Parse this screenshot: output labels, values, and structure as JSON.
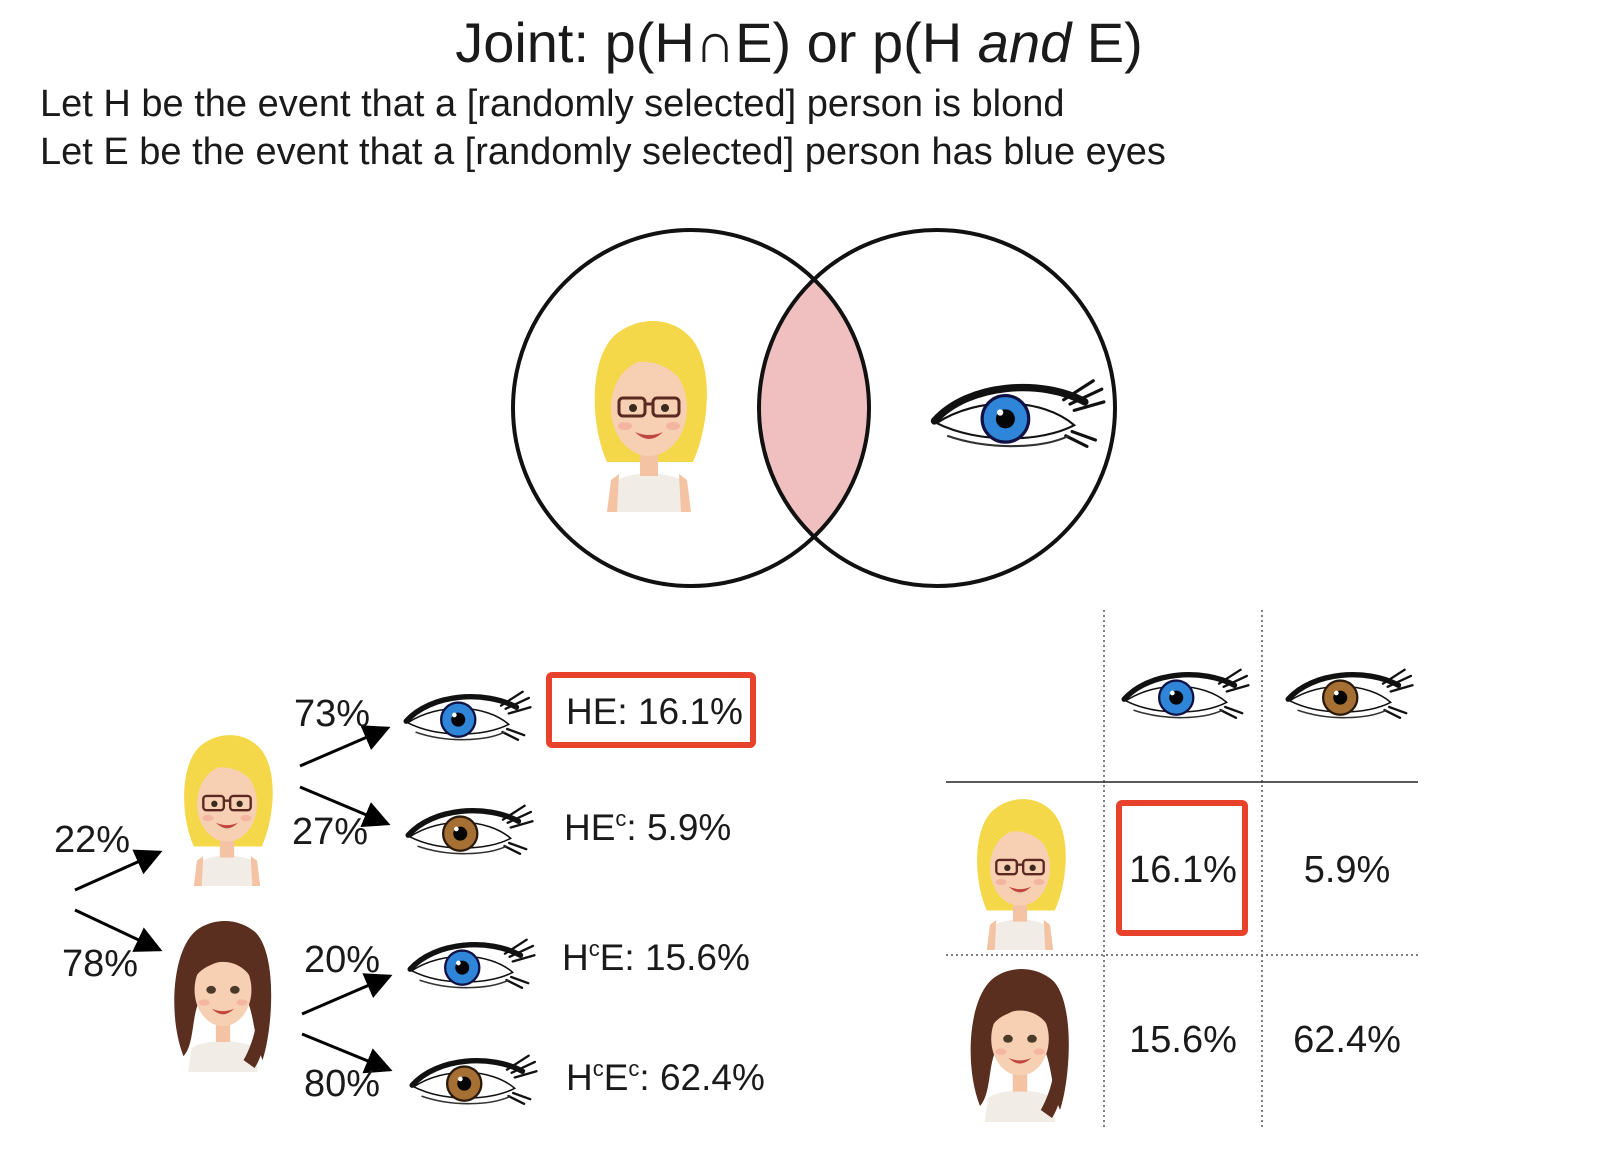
{
  "title": {
    "prefix": "Joint: p(H∩E) or p(H ",
    "italic": "and",
    "suffix": " E)"
  },
  "definitions": {
    "h": "Let H be the event that a [randomly selected] person is blond",
    "e": "Let E be the event that a [randomly selected] person has blue eyes"
  },
  "venn": {
    "left_icon": "blond-woman-avatar",
    "right_icon": "blue-eye-icon",
    "intersection_color": "#f0c0c0"
  },
  "tree": {
    "branch_blond": "22%",
    "branch_brunette": "78%",
    "blond_blue": "73%",
    "blond_brown": "27%",
    "brunette_blue": "20%",
    "brunette_brown": "80%",
    "outcomes": {
      "he": "HE: 16.1%",
      "hec_main": "HE",
      "hec_sup": "c",
      "hec_val": ": 5.9%",
      "hce_main": "H",
      "hce_sup": "c",
      "hce_val": "E: 15.6%",
      "hcec_a": "H",
      "hcec_sup1": "c",
      "hcec_b": "E",
      "hcec_sup2": "c",
      "hcec_val": ": 62.4%"
    }
  },
  "table": {
    "row_blond": {
      "blue": "16.1%",
      "brown": "5.9%"
    },
    "row_brunette": {
      "blue": "15.6%",
      "brown": "62.4%"
    }
  },
  "colors": {
    "highlight": "#e8412c",
    "blue_iris": "#2f86d8",
    "brown_iris": "#a67035",
    "blond_hair": "#f4d849",
    "brunette_hair": "#5a2f20"
  }
}
